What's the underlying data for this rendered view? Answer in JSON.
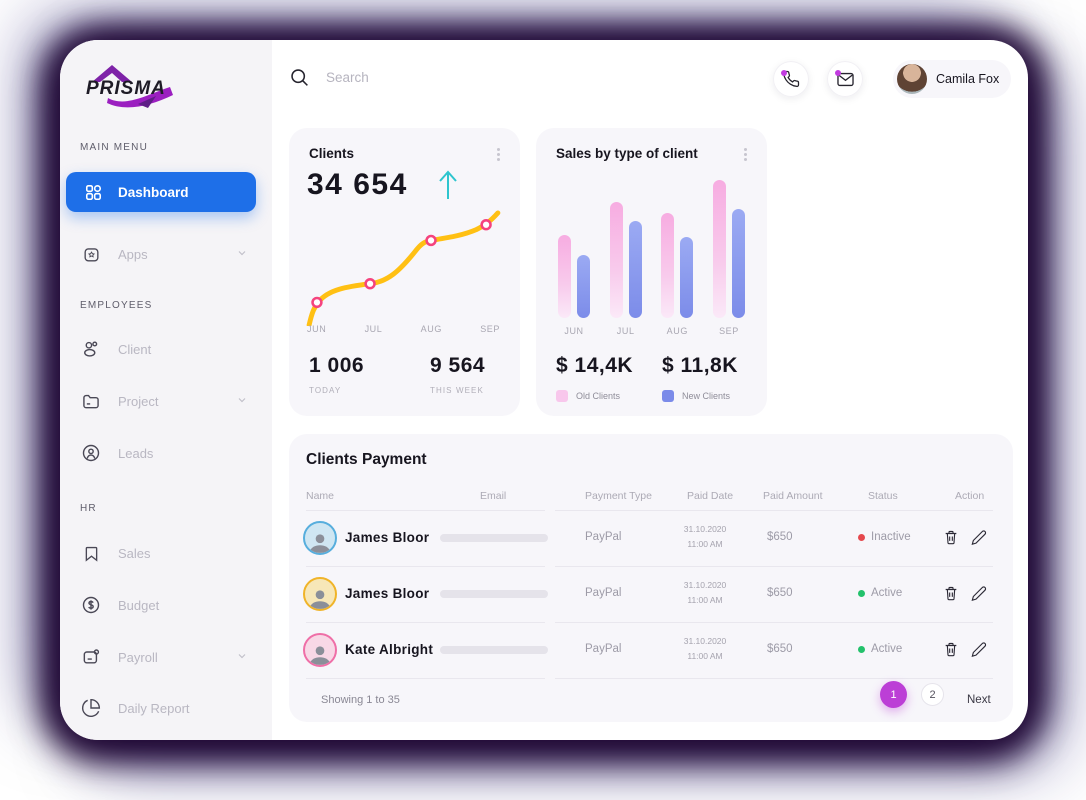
{
  "brand": {
    "name": "PRISMA"
  },
  "topbar": {
    "search_placeholder": "Search",
    "user_name": "Camila Fox",
    "notification_dot_color": "#C23BE0"
  },
  "sidebar": {
    "active_color": "#1E6FE8",
    "groups": [
      {
        "heading": "MAIN MENU",
        "items": [
          {
            "label": "Dashboard",
            "icon": "dashboard-grid-icon",
            "active": true,
            "chevron": false
          }
        ]
      },
      {
        "heading": "",
        "items": [
          {
            "label": "Apps",
            "icon": "apps-icon",
            "active": false,
            "chevron": true
          }
        ]
      },
      {
        "heading": "EMPLOYEES",
        "items": [
          {
            "label": "Client",
            "icon": "clients-icon",
            "active": false,
            "chevron": false
          },
          {
            "label": "Project",
            "icon": "project-folder-icon",
            "active": false,
            "chevron": true
          },
          {
            "label": "Leads",
            "icon": "leads-icon",
            "active": false,
            "chevron": false
          }
        ]
      },
      {
        "heading": "HR",
        "items": [
          {
            "label": "Sales",
            "icon": "sales-bookmark-icon",
            "active": false,
            "chevron": false
          },
          {
            "label": "Budget",
            "icon": "budget-dollar-icon",
            "active": false,
            "chevron": false
          },
          {
            "label": "Payroll",
            "icon": "payroll-icon",
            "active": false,
            "chevron": true
          },
          {
            "label": "Daily Report",
            "icon": "daily-report-icon",
            "active": false,
            "chevron": false
          }
        ]
      }
    ]
  },
  "cards": {
    "clients": {
      "title": "Clients",
      "value": "34 654",
      "trend": "up",
      "trend_color": "#2EC5CE",
      "months": [
        "JUN",
        "JUL",
        "AUG",
        "SEP"
      ],
      "today_value": "1 006",
      "today_label": "TODAY",
      "week_value": "9 564",
      "week_label": "THIS WEEK",
      "line_color": "#FFC013",
      "marker_color": "#F5437E"
    },
    "sales": {
      "title": "Sales by type of client",
      "months": [
        "JUN",
        "JUL",
        "AUG",
        "SEP"
      ],
      "old_clients_value": "$ 14,4K",
      "old_clients_label": "Old Clients",
      "old_clients_color": "#F8C7EC",
      "new_clients_value": "$ 11,8K",
      "new_clients_label": "New Clients",
      "new_clients_color": "#7B8BE9"
    }
  },
  "chart_data": [
    {
      "type": "line",
      "title": "Clients",
      "x": [
        "JUN",
        "JUL",
        "AUG",
        "SEP"
      ],
      "values_relative": [
        20,
        37,
        73,
        88
      ],
      "note": "no numeric axis shown; upward trend with 4 markers, relative heights only",
      "line_color": "#FFC013",
      "marker_color": "#F5437E"
    },
    {
      "type": "bar",
      "title": "Sales by type of client",
      "categories": [
        "JUN",
        "JUL",
        "AUG",
        "SEP"
      ],
      "series": [
        {
          "name": "Old Clients",
          "color": "#F6ACE0",
          "values_relative": [
            60,
            84,
            76,
            100
          ]
        },
        {
          "name": "New Clients",
          "color": "#7B8BE9",
          "values_relative": [
            46,
            70,
            59,
            79
          ]
        }
      ],
      "totals": {
        "Old Clients": "$ 14,4K",
        "New Clients": "$ 11,8K"
      },
      "note": "no numeric axis shown; values relative to tallest bar = 100"
    }
  ],
  "table": {
    "title": "Clients Payment",
    "columns": [
      "Name",
      "Email",
      "Payment Type",
      "Paid Date",
      "Paid Amount",
      "Status",
      "Action"
    ],
    "rows": [
      {
        "name": "James Bloor",
        "email_redacted": true,
        "payment_type": "PayPal",
        "paid_date": "31.10.2020",
        "paid_time": "11:00 AM",
        "paid_amount": "$650",
        "status": "Inactive",
        "status_color": "#E5484D",
        "avatar_ring": "#57AEDD",
        "avatar_bg": "#CFE6F2"
      },
      {
        "name": "James Bloor",
        "email_redacted": true,
        "payment_type": "PayPal",
        "paid_date": "31.10.2020",
        "paid_time": "11:00 AM",
        "paid_amount": "$650",
        "status": "Active",
        "status_color": "#23C16B",
        "avatar_ring": "#F0B429",
        "avatar_bg": "#F7E7B8"
      },
      {
        "name": "Kate Albright",
        "email_redacted": true,
        "payment_type": "PayPal",
        "paid_date": "31.10.2020",
        "paid_time": "11:00 AM",
        "paid_amount": "$650",
        "status": "Active",
        "status_color": "#23C16B",
        "avatar_ring": "#EF6FA7",
        "avatar_bg": "#F8D8E6"
      }
    ],
    "footer": {
      "showing": "Showing 1 to 35",
      "pages": [
        "1",
        "2"
      ],
      "active_page": "1",
      "active_page_color": "#BC3FD6",
      "next_label": "Next"
    }
  }
}
